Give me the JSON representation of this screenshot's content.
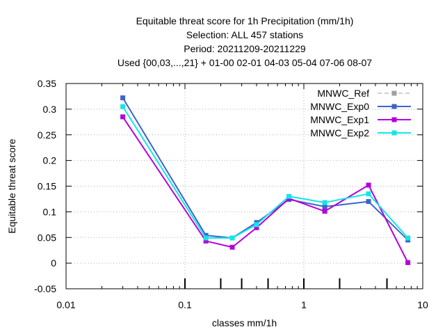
{
  "chart_data": {
    "type": "line",
    "title_lines": [
      "Equitable threat score  for 1h Precipitation (mm/1h)",
      "Selection: ALL    457 stations",
      "Period: 20211209-20211229",
      "Used {00,03,...,21} + 01-00 02-01 04-03 05-04 07-06 08-07"
    ],
    "xlabel": "classes mm/1h",
    "ylabel": "Equitable threat score",
    "x_scale": "log",
    "xlim": [
      0.01,
      10
    ],
    "ylim": [
      -0.05,
      0.35
    ],
    "x_ticks": [
      {
        "value": 0.01,
        "label": "0.01"
      },
      {
        "value": 0.1,
        "label": "0.1"
      },
      {
        "value": 1,
        "label": "1"
      },
      {
        "value": 10,
        "label": "10"
      }
    ],
    "y_ticks": [
      {
        "value": -0.05,
        "label": "-0.05"
      },
      {
        "value": 0,
        "label": "0"
      },
      {
        "value": 0.05,
        "label": "0.05"
      },
      {
        "value": 0.1,
        "label": "0.1"
      },
      {
        "value": 0.15,
        "label": "0.15"
      },
      {
        "value": 0.2,
        "label": "0.2"
      },
      {
        "value": 0.25,
        "label": "0.25"
      },
      {
        "value": 0.3,
        "label": "0.3"
      },
      {
        "value": 0.35,
        "label": "0.35"
      }
    ],
    "class_ticks": [
      0.1,
      0.2,
      0.3,
      0.5,
      1,
      2,
      5
    ],
    "grid": true,
    "legend_position": "top-right",
    "x": [
      0.03,
      0.15,
      0.25,
      0.4,
      0.75,
      1.5,
      3.5,
      7.5
    ],
    "series": [
      {
        "name": "MNWC_Ref",
        "color": "#a0a0a0",
        "dashed": true,
        "values": [
          null,
          null,
          null,
          null,
          null,
          null,
          null,
          null
        ]
      },
      {
        "name": "MNWC_Exp0",
        "color": "#3c64c8",
        "dashed": false,
        "values": [
          0.322,
          0.054,
          0.049,
          0.079,
          0.124,
          0.11,
          0.12,
          0.045
        ]
      },
      {
        "name": "MNWC_Exp1",
        "color": "#b400dc",
        "dashed": false,
        "values": [
          0.285,
          0.043,
          0.031,
          0.069,
          0.126,
          0.101,
          0.152,
          0.001
        ]
      },
      {
        "name": "MNWC_Exp2",
        "color": "#14e6e6",
        "dashed": false,
        "values": [
          0.305,
          0.049,
          0.049,
          0.075,
          0.13,
          0.118,
          0.135,
          0.049
        ]
      }
    ]
  }
}
